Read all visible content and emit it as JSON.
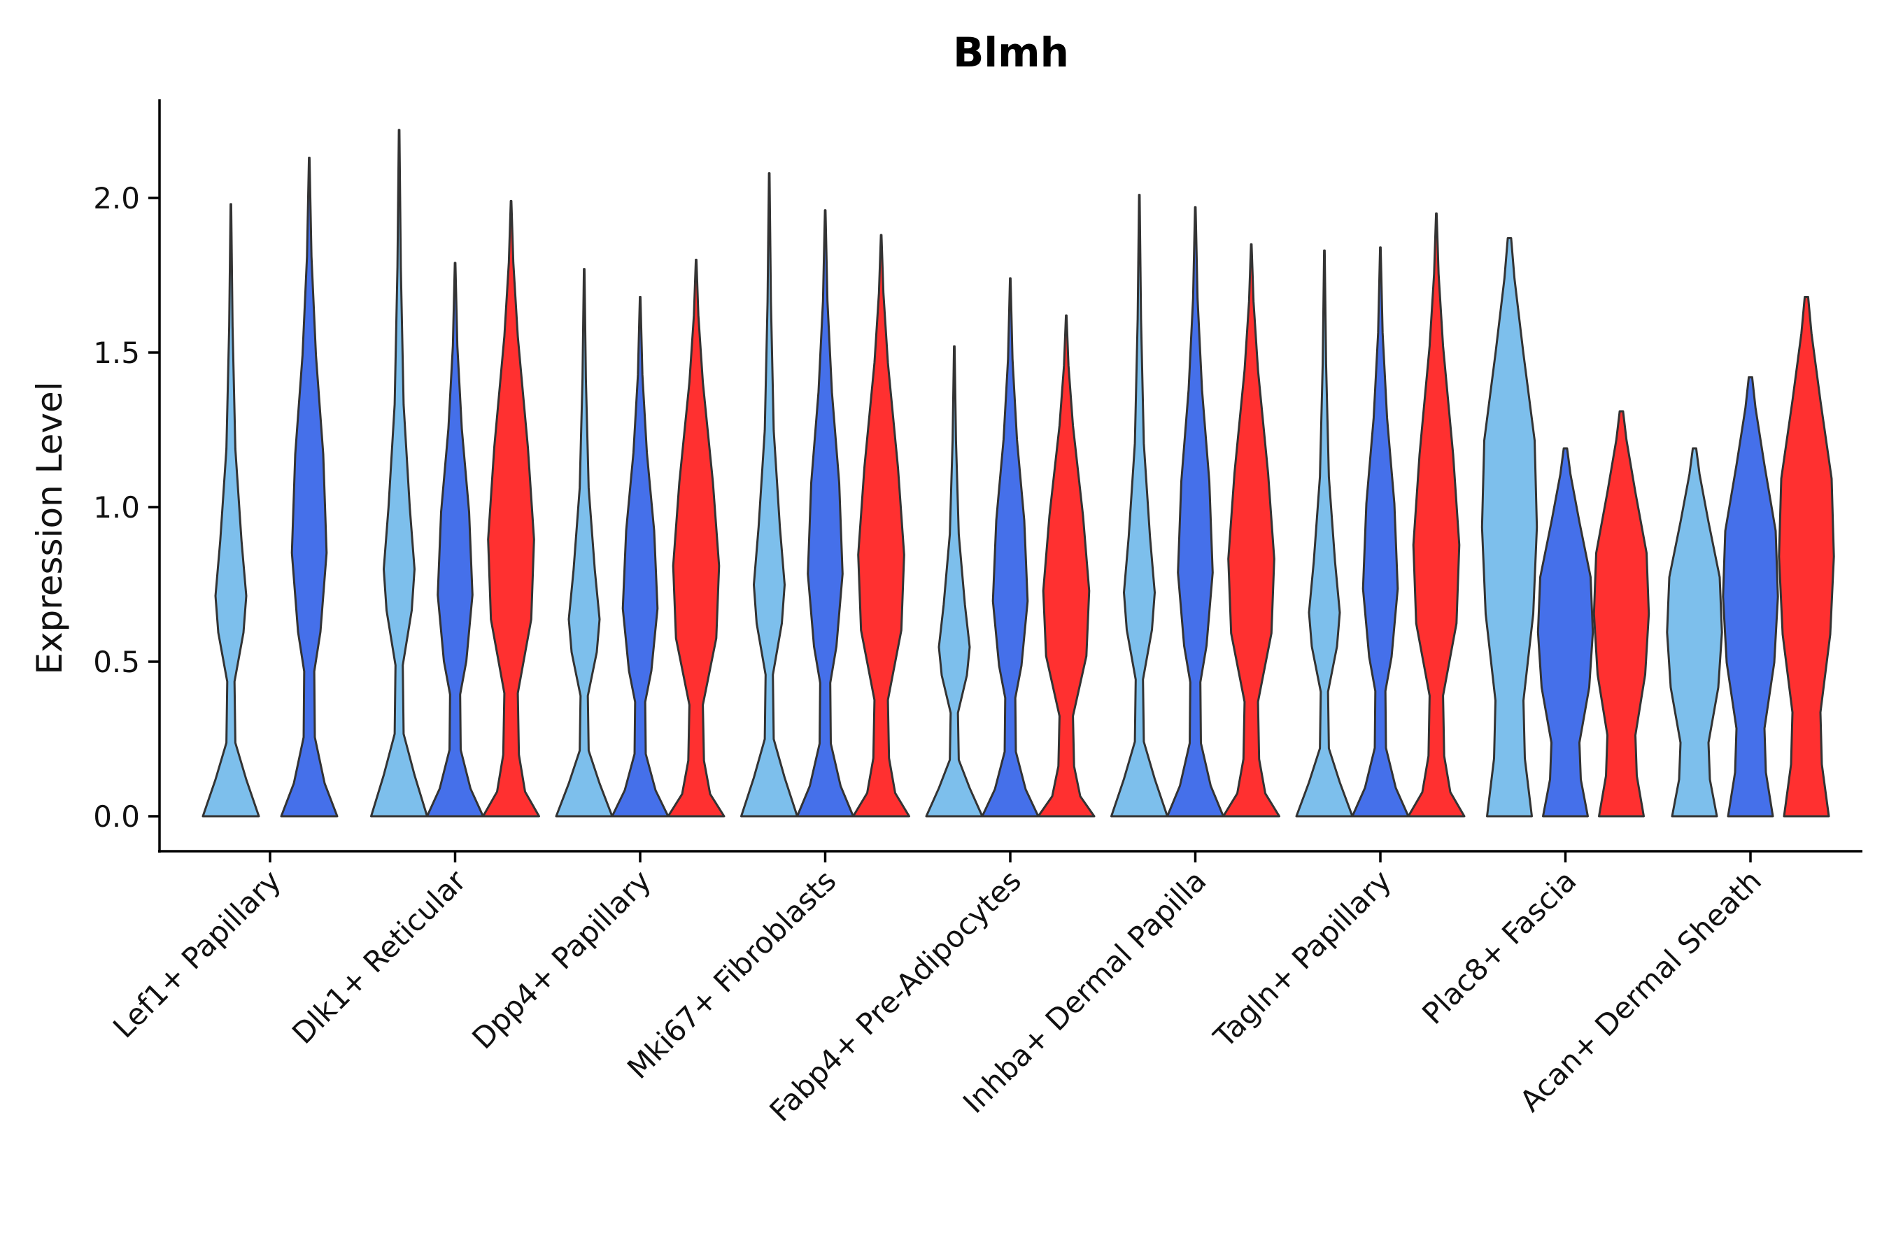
{
  "chart_data": {
    "type": "violin",
    "title": "Blmh",
    "xlabel": "",
    "ylabel": "Expression Level",
    "ylim": [
      -0.11,
      2.33
    ],
    "yticks": [
      0.0,
      0.5,
      1.0,
      1.5,
      2.0
    ],
    "ytick_labels": [
      "0.0",
      "0.5",
      "1.0",
      "1.5",
      "2.0"
    ],
    "legend": "none",
    "grid": false,
    "series": [
      {
        "name": "group-1",
        "color": "#7DBFEC"
      },
      {
        "name": "group-2",
        "color": "#4570EA"
      },
      {
        "name": "group-3",
        "color": "#FF3030"
      }
    ],
    "categories": [
      "Lef1+ Papillary",
      "Dlk1+ Reticular",
      "Dpp4+ Papillary",
      "Mki67+ Fibroblasts",
      "Fabp4+ Pre-Adipocytes",
      "Inhba+ Dermal Papilla",
      "Tagln+ Papillary",
      "Plac8+ Fascia",
      "Acan+ Dermal Sheath"
    ],
    "violins": [
      {
        "category": "Lef1+ Papillary",
        "series": "group-1",
        "max": 1.98
      },
      {
        "category": "Lef1+ Papillary",
        "series": "group-2",
        "max": 2.13
      },
      {
        "category": "Dlk1+ Reticular",
        "series": "group-1",
        "max": 2.22
      },
      {
        "category": "Dlk1+ Reticular",
        "series": "group-2",
        "max": 1.79
      },
      {
        "category": "Dlk1+ Reticular",
        "series": "group-3",
        "max": 1.99
      },
      {
        "category": "Dpp4+ Papillary",
        "series": "group-1",
        "max": 1.77
      },
      {
        "category": "Dpp4+ Papillary",
        "series": "group-2",
        "max": 1.68
      },
      {
        "category": "Dpp4+ Papillary",
        "series": "group-3",
        "max": 1.8
      },
      {
        "category": "Mki67+ Fibroblasts",
        "series": "group-1",
        "max": 2.08
      },
      {
        "category": "Mki67+ Fibroblasts",
        "series": "group-2",
        "max": 1.96
      },
      {
        "category": "Mki67+ Fibroblasts",
        "series": "group-3",
        "max": 1.88
      },
      {
        "category": "Fabp4+ Pre-Adipocytes",
        "series": "group-1",
        "max": 1.52
      },
      {
        "category": "Fabp4+ Pre-Adipocytes",
        "series": "group-2",
        "max": 1.74
      },
      {
        "category": "Fabp4+ Pre-Adipocytes",
        "series": "group-3",
        "max": 1.62
      },
      {
        "category": "Inhba+ Dermal Papilla",
        "series": "group-1",
        "max": 2.01
      },
      {
        "category": "Inhba+ Dermal Papilla",
        "series": "group-2",
        "max": 1.97
      },
      {
        "category": "Inhba+ Dermal Papilla",
        "series": "group-3",
        "max": 1.85
      },
      {
        "category": "Tagln+ Papillary",
        "series": "group-1",
        "max": 1.83
      },
      {
        "category": "Tagln+ Papillary",
        "series": "group-2",
        "max": 1.84
      },
      {
        "category": "Tagln+ Papillary",
        "series": "group-3",
        "max": 1.95
      },
      {
        "category": "Plac8+ Fascia",
        "series": "group-1",
        "max": 1.87
      },
      {
        "category": "Plac8+ Fascia",
        "series": "group-2",
        "max": 1.19
      },
      {
        "category": "Plac8+ Fascia",
        "series": "group-3",
        "max": 1.31
      },
      {
        "category": "Acan+ Dermal Sheath",
        "series": "group-1",
        "max": 1.19
      },
      {
        "category": "Acan+ Dermal Sheath",
        "series": "group-2",
        "max": 1.42
      },
      {
        "category": "Acan+ Dermal Sheath",
        "series": "group-3",
        "max": 1.68
      }
    ]
  }
}
